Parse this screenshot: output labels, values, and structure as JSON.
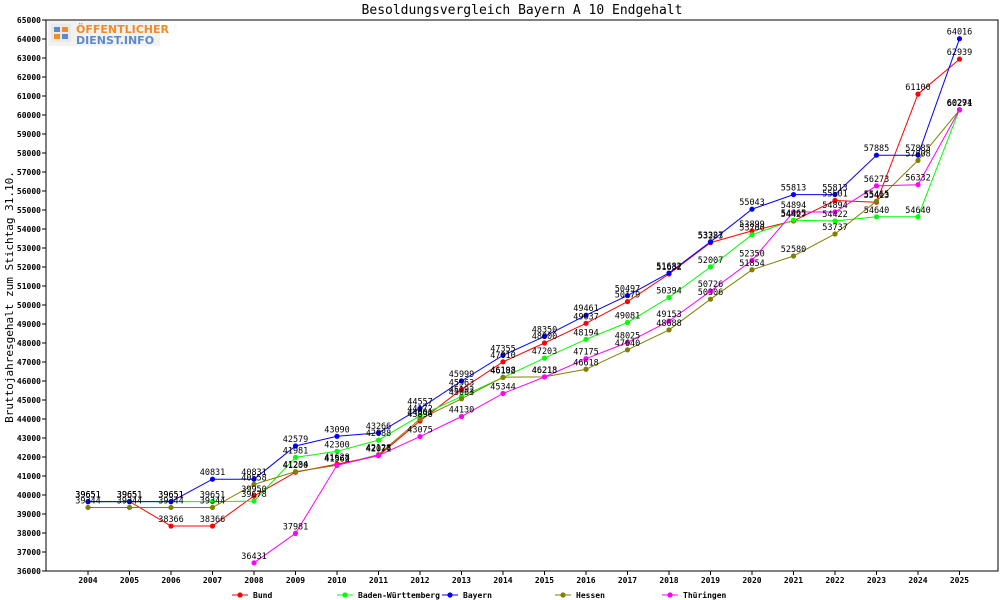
{
  "chart_data": {
    "type": "line",
    "title": "Besoldungsvergleich Bayern A 10 Endgehalt",
    "ylabel": "Bruttojahresgehalt zum Stichtag 31.10.",
    "xlabel": "",
    "ylim": [
      36000,
      65000
    ],
    "ystep": 1000,
    "grid": false,
    "legend_position": "bottom",
    "x": [
      "2004",
      "2005",
      "2006",
      "2007",
      "2008",
      "2009",
      "2010",
      "2011",
      "2012",
      "2013",
      "2014",
      "2015",
      "2016",
      "2017",
      "2018",
      "2019",
      "2020",
      "2021",
      "2022",
      "2023",
      "2024",
      "2025"
    ],
    "series": [
      {
        "name": "Bund",
        "color": "#ff0000",
        "values": [
          39651,
          39651,
          38366,
          38366,
          39950,
          41200,
          41628,
          42071,
          43896,
          45563,
          47010,
          48000,
          49037,
          50179,
          51632,
          53283,
          53899,
          54427,
          55501,
          55413,
          61100,
          62939
        ]
      },
      {
        "name": "Baden-Württemberg",
        "color": "#00ff00",
        "values": [
          39651,
          39651,
          39651,
          39651,
          39678,
          41981,
          42300,
          42888,
          44172,
          45192,
          46182,
          47203,
          48194,
          49081,
          50394,
          52007,
          53700,
          54465,
          54422,
          54640,
          54640,
          60294
        ]
      },
      {
        "name": "Bayern",
        "color": "#0000ff",
        "values": [
          39651,
          39651,
          39651,
          40831,
          40831,
          42579,
          43090,
          43266,
          44557,
          45999,
          47355,
          48350,
          49461,
          50497,
          51682,
          53327,
          55043,
          55813,
          55813,
          57885,
          57885,
          64016
        ]
      },
      {
        "name": "Hessen",
        "color": "#808000",
        "values": [
          39344,
          39344,
          39344,
          39344,
          40558,
          41234,
          41563,
          42128,
          44001,
          45063,
          46198,
          46218,
          46618,
          47640,
          48688,
          50306,
          51854,
          52580,
          53737,
          55465,
          57608,
          60271
        ]
      },
      {
        "name": "Thüringen",
        "color": "#ff00ff",
        "values": [
          null,
          null,
          null,
          null,
          36431,
          37981,
          41562,
          42077,
          43075,
          44130,
          45344,
          46213,
          47175,
          48025,
          49153,
          50726,
          52350,
          54894,
          54894,
          56273,
          56332,
          60271
        ]
      }
    ]
  },
  "watermark": {
    "line1": "ÖFFENTLICHER",
    "line2": "DIENST.INFO"
  }
}
